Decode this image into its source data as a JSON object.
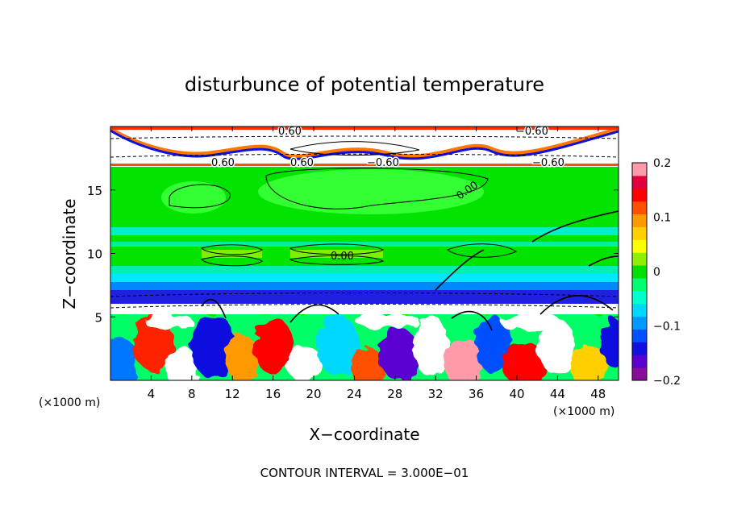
{
  "chart_data": {
    "type": "heatmap",
    "title": "disturbunce of potential temperature",
    "xlabel": "X−coordinate",
    "ylabel": "Z−coordinate",
    "x_unit": "(×1000 m)",
    "z_unit": "(×1000 m)",
    "xlim": [
      0,
      50
    ],
    "ylim": [
      0,
      20
    ],
    "x_ticks": [
      4,
      8,
      12,
      16,
      20,
      24,
      28,
      32,
      36,
      40,
      44,
      48
    ],
    "y_ticks": [
      5,
      10,
      15
    ],
    "colorbar": {
      "range": [
        -0.2,
        0.2
      ],
      "tick_values": [
        0.2,
        0.1,
        0,
        -0.1,
        -0.2
      ],
      "tick_labels": [
        "0.2",
        "0.1",
        "0",
        "−0.1",
        "−0.2"
      ],
      "colors": [
        "#8a0d9a",
        "#5a00d0",
        "#1010e0",
        "#0050ff",
        "#0099ff",
        "#00d8ff",
        "#00ffcc",
        "#00ff70",
        "#00e000",
        "#8ef000",
        "#ffff00",
        "#ffd000",
        "#ff9900",
        "#ff5000",
        "#ff0000",
        "#e00040",
        "#ff9aa8"
      ]
    },
    "contour_labels": [
      "0.60",
      "0.60",
      "−0.60",
      "−0.60",
      "0.60",
      "−0.60",
      "0.00",
      "0.00"
    ],
    "footnote": "CONTOUR INTERVAL = 3.000E−01"
  }
}
